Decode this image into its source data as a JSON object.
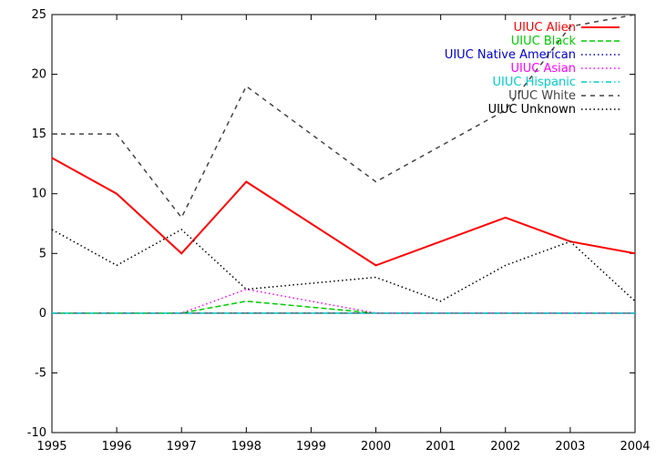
{
  "chart_data": {
    "type": "line",
    "title": "",
    "xlabel": "",
    "ylabel": "",
    "xlim": [
      1995,
      2004
    ],
    "ylim": [
      -10,
      25
    ],
    "xticks": [
      1995,
      1996,
      1997,
      1998,
      1999,
      2000,
      2001,
      2002,
      2003,
      2004
    ],
    "yticks": [
      -10,
      -5,
      0,
      5,
      10,
      15,
      20,
      25
    ],
    "grid": false,
    "legend_position": "top-right",
    "x": [
      1995,
      1996,
      1997,
      1998,
      2000,
      2001,
      2002,
      2003,
      2004
    ],
    "series": [
      {
        "name": "UIUC Alien",
        "color": "#ff0000",
        "style": "solid",
        "values": [
          13,
          10,
          5,
          11,
          4,
          6,
          8,
          6,
          5
        ]
      },
      {
        "name": "UIUC Black",
        "color": "#00cc00",
        "style": "dashed",
        "values": [
          0,
          0,
          0,
          1,
          0,
          0,
          0,
          0,
          0
        ]
      },
      {
        "name": "UIUC Native American",
        "color": "#0000cc",
        "style": "dotted",
        "values": [
          0,
          0,
          0,
          0,
          0,
          0,
          0,
          0,
          0
        ]
      },
      {
        "name": "UIUC Asian",
        "color": "#ff00ff",
        "style": "dotted",
        "values": [
          0,
          0,
          0,
          2,
          0,
          0,
          0,
          0,
          0
        ]
      },
      {
        "name": "UIUC Hispanic",
        "color": "#00cccc",
        "style": "dashdot",
        "values": [
          0,
          0,
          0,
          0,
          0,
          0,
          0,
          0,
          0
        ]
      },
      {
        "name": "UIUC White",
        "color": "#444444",
        "style": "longdash",
        "values": [
          15,
          15,
          8,
          19,
          11,
          14,
          17,
          24,
          25
        ]
      },
      {
        "name": "UIUC Unknown",
        "color": "#000000",
        "style": "dotted",
        "values": [
          7,
          4,
          7,
          2,
          3,
          1,
          4,
          6,
          1
        ]
      }
    ]
  }
}
